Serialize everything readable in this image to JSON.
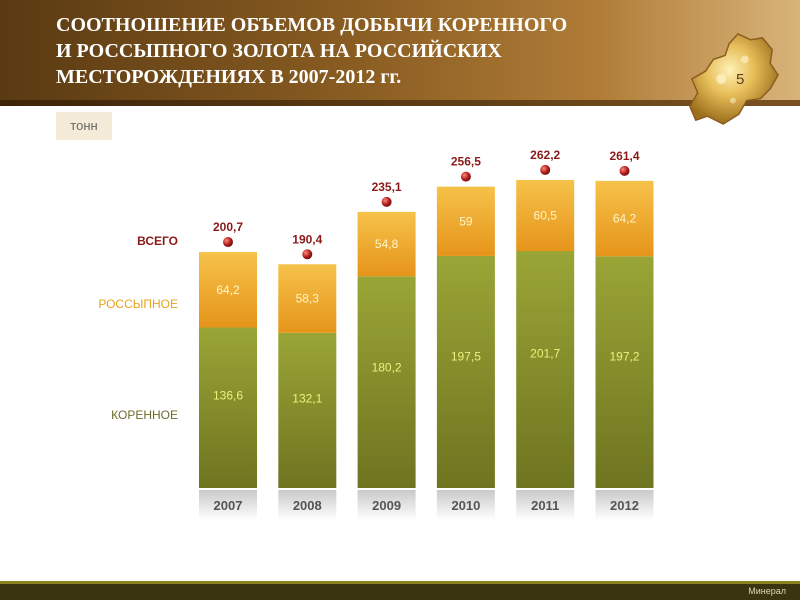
{
  "header": {
    "title_lines": [
      "СООТНОШЕНИЕ ОБЪЕМОВ ДОБЫЧИ КОРЕННОГО",
      "И РОССЫПНОГО ЗОЛОТА НА РОССИЙСКИХ",
      "МЕСТОРОЖДЕНИЯХ В 2007-2012 гг."
    ],
    "page_number": "5"
  },
  "unit_label": "тонн",
  "legend": {
    "total": "ВСЕГО",
    "placer": "РОССЫПНОЕ",
    "ore": "КОРЕННОЕ"
  },
  "footer": {
    "label": "Минерал"
  },
  "colors": {
    "ore": "#8f9a2e",
    "placer": "#f0a722",
    "total_marker": "#b01e1e",
    "total_label": "#8a1a1a",
    "value_text_ore": "#eef07a",
    "value_text_placer": "#fff4c8"
  },
  "chart_data": {
    "type": "bar",
    "stacked": true,
    "categories": [
      "2007",
      "2008",
      "2009",
      "2010",
      "2011",
      "2012"
    ],
    "series": [
      {
        "name": "КОРЕННОЕ",
        "values": [
          136.6,
          132.1,
          180.2,
          197.5,
          201.7,
          197.2
        ]
      },
      {
        "name": "РОССЫПНОЕ",
        "values": [
          64.2,
          58.3,
          54.8,
          59,
          60.5,
          64.2
        ]
      }
    ],
    "totals": [
      200.7,
      190.4,
      235.1,
      256.5,
      262.2,
      261.4
    ],
    "value_labels": {
      "ore": [
        "136,6",
        "132,1",
        "180,2",
        "197,5",
        "201,7",
        "197,2"
      ],
      "placer": [
        "64,2",
        "58,3",
        "54,8",
        "59",
        "60,5",
        "64,2"
      ],
      "total": [
        "200,7",
        "190,4",
        "235,1",
        "256,5",
        "262,2",
        "261,4"
      ]
    },
    "ylabel": "тонн",
    "legend_position": "left",
    "grid": false
  }
}
